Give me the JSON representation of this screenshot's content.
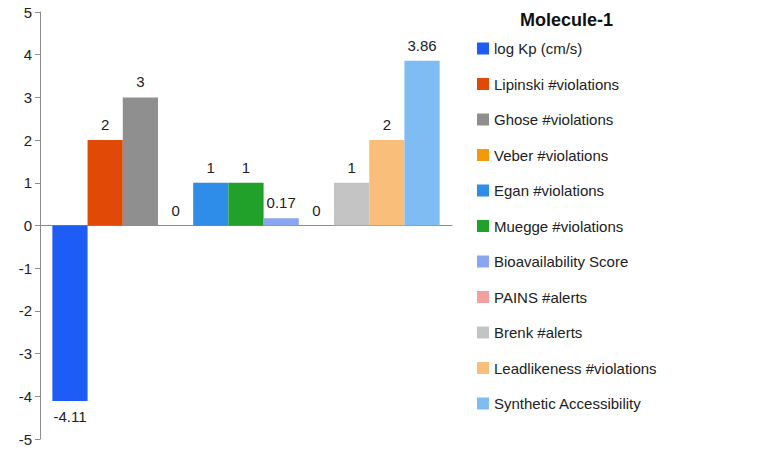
{
  "chart_data": {
    "type": "bar",
    "title": "Molecule-1",
    "categories": [
      null
    ],
    "series": [
      {
        "name": "log Kp (cm/s)",
        "color": "#1d5cf5",
        "values": [
          -4.11
        ]
      },
      {
        "name": "Lipinski #violations",
        "color": "#e04a06",
        "values": [
          2
        ]
      },
      {
        "name": "Ghose #violations",
        "color": "#8f8f8f",
        "values": [
          3
        ]
      },
      {
        "name": "Veber #violations",
        "color": "#f49a0a",
        "values": [
          0
        ]
      },
      {
        "name": "Egan #violations",
        "color": "#2e8de6",
        "values": [
          1
        ]
      },
      {
        "name": "Muegge #violations",
        "color": "#22a12a",
        "values": [
          1
        ]
      },
      {
        "name": "Bioavailability Score",
        "color": "#8aa6f0",
        "values": [
          0.17
        ]
      },
      {
        "name": "PAINS #alerts",
        "color": "#f5a0a0",
        "values": [
          0
        ]
      },
      {
        "name": "Brenk #alerts",
        "color": "#c4c4c4",
        "values": [
          1
        ]
      },
      {
        "name": "Leadlikeness #violations",
        "color": "#f9bf7a",
        "values": [
          2
        ]
      },
      {
        "name": "Synthetic Accessibility",
        "color": "#7fbcf4",
        "values": [
          3.86
        ]
      }
    ],
    "ylim": [
      -5,
      5
    ],
    "yticks": [
      -5,
      -4,
      -3,
      -2,
      -1,
      0,
      1,
      2,
      3,
      4,
      5
    ],
    "grid": false,
    "data_labels": true,
    "legend": "right",
    "tick_labels": "y"
  }
}
